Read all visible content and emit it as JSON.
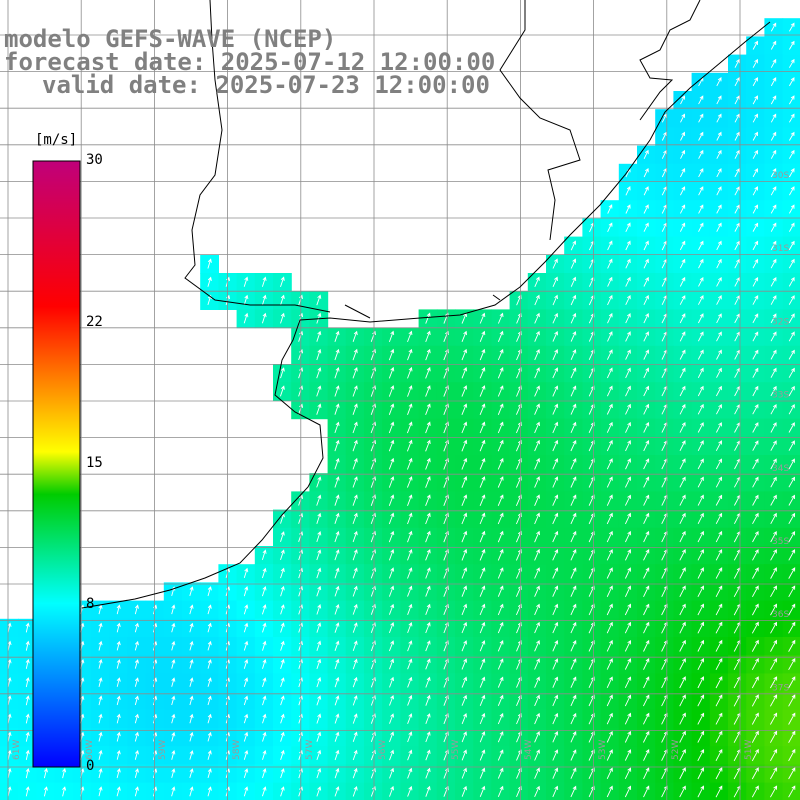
{
  "title": {
    "line1": "modelo GEFS-WAVE (NCEP)",
    "line2": "forecast date: 2025-07-12 12:00:00",
    "line3": "valid date: 2025-07-23 12:00:00"
  },
  "colorbar": {
    "unit": "[m/s]",
    "ticks": [
      {
        "label": "30",
        "value": 30
      },
      {
        "label": "22",
        "value": 22
      },
      {
        "label": "15",
        "value": 15
      },
      {
        "label": "8",
        "value": 8
      },
      {
        "label": "0",
        "value": 0
      }
    ],
    "min": 0,
    "max": 30,
    "stops": [
      "#0000ff",
      "#00ffff",
      "#00cc00",
      "#ffff00",
      "#ff0000",
      "#c0007a"
    ]
  },
  "grid_labels": {
    "longitudes": [
      "61W",
      "60W",
      "59W",
      "58W",
      "57W",
      "56W",
      "55W",
      "54W",
      "53W",
      "52W",
      "51W"
    ],
    "latitudes": [
      "30S",
      "31S",
      "32S",
      "33S",
      "34S",
      "35S",
      "36S",
      "37S"
    ]
  },
  "colors": {
    "land": "#ffffff",
    "grid": "#8c8c8c",
    "coast": "#000000",
    "arrows": "#ffffff",
    "title_text": "#808080"
  }
}
